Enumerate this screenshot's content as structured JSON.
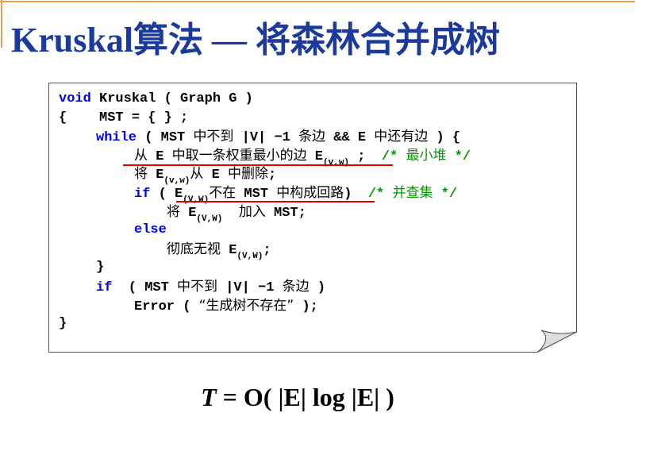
{
  "title": "Kruskal算法 — 将森林合并成树",
  "colors": {
    "title": "#1a3a9c",
    "keyword": "#0000ee",
    "comment": "#009900",
    "underline": "#e00000",
    "accent_rule": "#e8a050"
  },
  "code_lines": [
    [
      {
        "t": "void",
        "c": "kw"
      },
      {
        "t": " Kruskal ( Graph G )"
      }
    ],
    [
      {
        "t": "{    MST = { } ;"
      }
    ],
    [
      {
        "t": "while",
        "c": "kw"
      },
      {
        "t": " ( MST "
      },
      {
        "t": "中不到",
        "c": "cn"
      },
      {
        "t": " |V| −1 "
      },
      {
        "t": "条边",
        "c": "cn"
      },
      {
        "t": " && E "
      },
      {
        "t": "中还有边",
        "c": "cn"
      },
      {
        "t": " ) {"
      }
    ],
    [
      {
        "t": "从",
        "c": "cn"
      },
      {
        "t": " E "
      },
      {
        "t": "中取一条权重最小的边",
        "c": "cn"
      },
      {
        "t": " E"
      },
      {
        "t": "(v,w)",
        "c": "sub"
      },
      {
        "t": " ;  "
      },
      {
        "t": "/* ",
        "c": "cm"
      },
      {
        "t": "最小堆",
        "c": "cm cn"
      },
      {
        "t": " */",
        "c": "cm"
      }
    ],
    [
      {
        "t": "将",
        "c": "cn"
      },
      {
        "t": " E"
      },
      {
        "t": "(v,w)",
        "c": "sub"
      },
      {
        "t": "从",
        "c": "cn"
      },
      {
        "t": " E "
      },
      {
        "t": "中删除",
        "c": "cn"
      },
      {
        "t": ";"
      }
    ],
    [
      {
        "t": "if",
        "c": "kw"
      },
      {
        "t": " ( E"
      },
      {
        "t": "(V,W)",
        "c": "sub"
      },
      {
        "t": "不在",
        "c": "cn"
      },
      {
        "t": " MST "
      },
      {
        "t": "中构成回路",
        "c": "cn"
      },
      {
        "t": ")  "
      },
      {
        "t": "/* ",
        "c": "cm"
      },
      {
        "t": "并查集",
        "c": "cm cn"
      },
      {
        "t": " */",
        "c": "cm"
      }
    ],
    [
      {
        "t": "将",
        "c": "cn"
      },
      {
        "t": " E"
      },
      {
        "t": "(V,W)",
        "c": "sub"
      },
      {
        "t": "  "
      },
      {
        "t": "加入",
        "c": "cn"
      },
      {
        "t": " MST;"
      }
    ],
    [
      {
        "t": "else",
        "c": "kw"
      }
    ],
    [
      {
        "t": "彻底无视",
        "c": "cn"
      },
      {
        "t": " E"
      },
      {
        "t": "(V,W)",
        "c": "sub"
      },
      {
        "t": ";"
      }
    ],
    [
      {
        "t": "}"
      }
    ],
    [
      {
        "t": "if",
        "c": "kw"
      },
      {
        "t": "  ( MST "
      },
      {
        "t": "中不到",
        "c": "cn"
      },
      {
        "t": " |V| −1 "
      },
      {
        "t": "条边",
        "c": "cn"
      },
      {
        "t": " )"
      }
    ],
    [
      {
        "t": "Error ( "
      },
      {
        "t": "“生成树不存在”",
        "c": "cn"
      },
      {
        "t": " );"
      }
    ],
    [
      {
        "t": "}"
      }
    ]
  ],
  "formula": {
    "var": "T",
    "rest": " = O( |E| log |E| )"
  }
}
